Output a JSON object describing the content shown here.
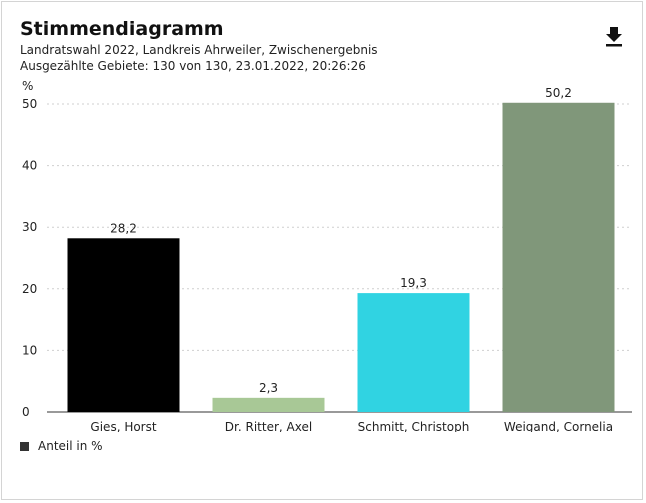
{
  "header": {
    "title": "Stimmendiagramm",
    "subtitle": "Landratswahl 2022, Landkreis Ahrweiler, Zwischenergebnis",
    "subtitle2": "Ausgezählte Gebiete: 130 von 130, 23.01.2022, 20:26:26",
    "download_icon": "download-icon"
  },
  "legend": {
    "label": "Anteil in %",
    "color": "#333333"
  },
  "chart_data": {
    "type": "bar",
    "categories": [
      "Gies, Horst",
      "Dr. Ritter, Axel",
      "Schmitt, Christoph",
      "Weigand, Cornelia"
    ],
    "values": [
      28.2,
      2.3,
      19.3,
      50.2
    ],
    "value_labels": [
      "28,2",
      "2,3",
      "19,3",
      "50,2"
    ],
    "colors": [
      "#000000",
      "#a8c896",
      "#30d3e2",
      "#80977a"
    ],
    "ylabel": "%",
    "ylim": [
      0,
      50
    ],
    "yticks": [
      0,
      10,
      20,
      30,
      40,
      50
    ],
    "grid": true,
    "legend_position": "bottom-left"
  }
}
